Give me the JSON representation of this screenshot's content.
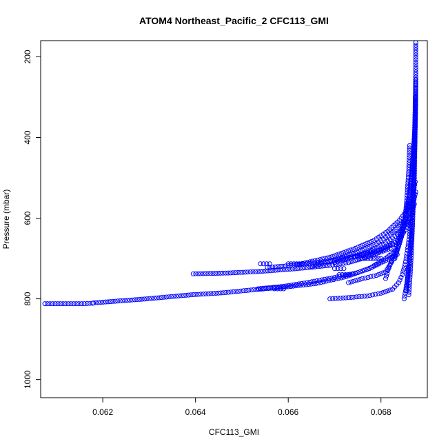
{
  "chart_data": {
    "type": "scatter",
    "title": "ATOM4 Northeast_Pacific_2 CFC113_GMI",
    "xlabel": "CFC113_GMI",
    "ylabel": "Pressure (mbar)",
    "xlim": [
      0.06066,
      0.069
    ],
    "ylim": [
      1045,
      160
    ],
    "y_reversed": true,
    "x_ticks": [
      0.062,
      0.064,
      0.066,
      0.068
    ],
    "x_tick_labels": [
      "0.062",
      "0.064",
      "0.066",
      "0.068"
    ],
    "y_ticks": [
      200,
      400,
      600,
      800,
      1000
    ],
    "y_tick_labels": [
      "200",
      "400",
      "600",
      "800",
      "1000"
    ],
    "marker": "open-circle",
    "color": "#0000ff",
    "grid": false,
    "legend": "none",
    "series": [
      {
        "x": [
          0.0618,
          0.06295,
          0.0639,
          0.0646,
          0.0652,
          0.066,
          0.0666,
          0.06725,
          0.06775,
          0.0681,
          0.06832
        ],
        "y": [
          810,
          800,
          790,
          785,
          778,
          770,
          762,
          745,
          725,
          700,
          680
        ]
      },
      {
        "x": [
          0.06075,
          0.0612,
          0.0616,
          0.06178
        ],
        "y": [
          812,
          812,
          812,
          811
        ]
      },
      {
        "x": [
          0.06395,
          0.0647,
          0.0654,
          0.0662,
          0.0669,
          0.0673,
          0.0676,
          0.0679,
          0.0682
        ],
        "y": [
          738,
          736,
          732,
          725,
          717,
          710,
          700,
          688,
          675
        ]
      },
      {
        "x": [
          0.06555,
          0.066,
          0.0664,
          0.0668,
          0.0672,
          0.0676,
          0.068,
          0.0683
        ],
        "y": [
          722,
          718,
          713,
          707,
          700,
          690,
          677,
          660
        ]
      },
      {
        "x": [
          0.06535,
          0.0659,
          0.0664,
          0.067,
          0.0675,
          0.0678,
          0.0681,
          0.06835
        ],
        "y": [
          775,
          769,
          760,
          747,
          735,
          722,
          705,
          690
        ]
      },
      {
        "x": [
          0.0669,
          0.0673,
          0.0677,
          0.068,
          0.06825,
          0.06838,
          0.06846,
          0.06852,
          0.06857,
          0.06862,
          0.06864
        ],
        "y": [
          800,
          797,
          793,
          786,
          776,
          760,
          740,
          715,
          680,
          640,
          600
        ]
      },
      {
        "x": [
          0.0675,
          0.0678,
          0.06805,
          0.06825,
          0.0684,
          0.06852,
          0.0686
        ],
        "y": [
          695,
          688,
          678,
          665,
          650,
          630,
          610
        ]
      },
      {
        "x": [
          0.067,
          0.0674,
          0.0678,
          0.0681,
          0.06835,
          0.06852,
          0.06865,
          0.06872
        ],
        "y": [
          710,
          697,
          680,
          661,
          641,
          618,
          592,
          565
        ]
      },
      {
        "x": [
          0.0665,
          0.067,
          0.0675,
          0.0679,
          0.0682,
          0.06845,
          0.0686,
          0.0687,
          0.06875
        ],
        "y": [
          720,
          705,
          685,
          663,
          640,
          616,
          590,
          560,
          535
        ]
      },
      {
        "x": [
          0.0662,
          0.0669,
          0.0674,
          0.06785,
          0.06815,
          0.0684,
          0.06858,
          0.06868,
          0.06874
        ],
        "y": [
          715,
          697,
          677,
          655,
          632,
          605,
          578,
          545,
          510
        ]
      },
      {
        "x": [
          0.0673,
          0.0676,
          0.0679,
          0.0681,
          0.0682,
          0.0683,
          0.06838,
          0.06846,
          0.06852,
          0.06856,
          0.0686,
          0.06862
        ],
        "y": [
          760,
          750,
          742,
          733,
          715,
          695,
          670,
          640,
          600,
          550,
          480,
          420
        ]
      },
      {
        "x": [
          0.0681,
          0.06815,
          0.06823,
          0.06832,
          0.06842,
          0.06852,
          0.0686,
          0.06866,
          0.0687,
          0.06873
        ],
        "y": [
          750,
          730,
          705,
          675,
          640,
          600,
          550,
          490,
          430,
          380
        ]
      },
      {
        "x": [
          0.0683,
          0.0684,
          0.06852,
          0.06862,
          0.06868,
          0.06872,
          0.06874,
          0.06875
        ],
        "y": [
          700,
          660,
          610,
          550,
          480,
          400,
          320,
          250
        ]
      },
      {
        "x": [
          0.0686,
          0.06863,
          0.06866,
          0.06868,
          0.0687,
          0.06872,
          0.06873,
          0.06874,
          0.06875,
          0.06875,
          0.06875
        ],
        "y": [
          790,
          740,
          680,
          620,
          560,
          500,
          440,
          380,
          320,
          250,
          165
        ]
      },
      {
        "x": [
          0.0685,
          0.06856,
          0.06862,
          0.06866,
          0.06869,
          0.06871,
          0.06873,
          0.06874
        ],
        "y": [
          800,
          760,
          700,
          630,
          560,
          480,
          400,
          300
        ]
      },
      {
        "x": [
          0.06855,
          0.0686,
          0.06865,
          0.06868,
          0.06871,
          0.06873,
          0.06874,
          0.06875
        ],
        "y": [
          780,
          720,
          650,
          580,
          500,
          420,
          340,
          260
        ]
      },
      {
        "x": [
          0.067,
          0.0672
        ],
        "y": [
          725,
          725
        ]
      },
      {
        "x": [
          0.06755,
          0.068
        ],
        "y": [
          700,
          700
        ]
      },
      {
        "x": [
          0.0654,
          0.0656
        ],
        "y": [
          713,
          713
        ]
      },
      {
        "x": [
          0.066,
          0.0663
        ],
        "y": [
          713,
          713
        ]
      },
      {
        "x": [
          0.0671,
          0.0673
        ],
        "y": [
          740,
          740
        ]
      },
      {
        "x": [
          0.0657,
          0.0659
        ],
        "y": [
          775,
          775
        ]
      }
    ]
  }
}
